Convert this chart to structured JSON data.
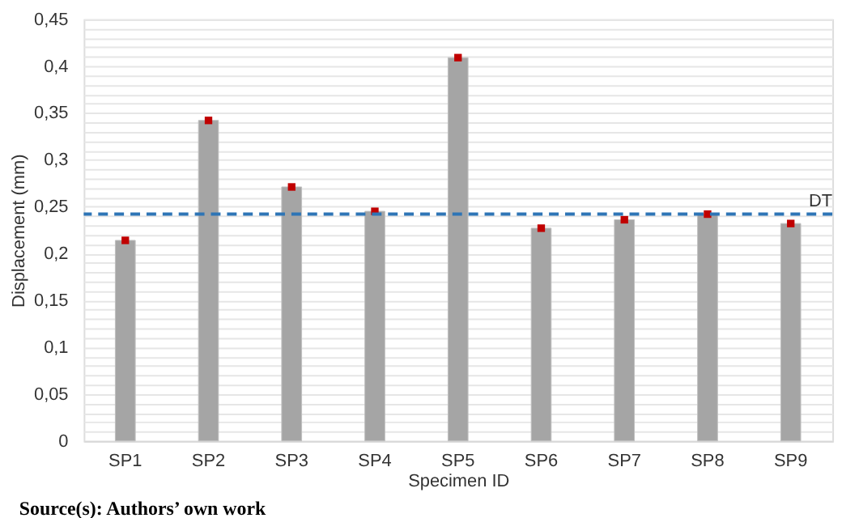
{
  "chart_data": {
    "type": "bar",
    "xlabel": "Specimen ID",
    "ylabel": "Displacement (mm)",
    "categories": [
      "SP1",
      "SP2",
      "SP3",
      "SP4",
      "SP5",
      "SP6",
      "SP7",
      "SP8",
      "SP9"
    ],
    "series": [
      {
        "color": "#a5a5a5",
        "values": [
          0.214,
          0.342,
          0.271,
          0.245,
          0.409,
          0.227,
          0.236,
          0.242,
          0.232
        ]
      },
      {
        "type": "scatter",
        "color": "#c00000",
        "marker": "square",
        "values": [
          0.214,
          0.342,
          0.271,
          0.245,
          0.409,
          0.227,
          0.236,
          0.242,
          0.232
        ]
      }
    ],
    "ylim": [
      0,
      0.45
    ],
    "yticks": [
      0,
      {
        "value": 0.01,
        "label": null
      },
      {
        "value": 0.02,
        "label": null
      },
      {
        "value": 0.03,
        "label": null
      },
      {
        "value": 0.04,
        "label": null
      },
      {
        "value": 0.05,
        "label": "0,05"
      },
      {
        "value": 0.06,
        "label": null
      },
      {
        "value": 0.07,
        "label": null
      },
      {
        "value": 0.08,
        "label": null
      },
      {
        "value": 0.09,
        "label": null
      },
      {
        "value": 0.1,
        "label": "0,1"
      },
      {
        "value": 0.11,
        "label": null
      },
      {
        "value": 0.12,
        "label": null
      },
      {
        "value": 0.13,
        "label": null
      },
      {
        "value": 0.14,
        "label": null
      },
      {
        "value": 0.15,
        "label": "0,15"
      },
      {
        "value": 0.16,
        "label": null
      },
      {
        "value": 0.17,
        "label": null
      },
      {
        "value": 0.18,
        "label": null
      },
      {
        "value": 0.19,
        "label": null
      },
      {
        "value": 0.2,
        "label": "0,2"
      },
      {
        "value": 0.21,
        "label": null
      },
      {
        "value": 0.22,
        "label": null
      },
      {
        "value": 0.23,
        "label": null
      },
      {
        "value": 0.24,
        "label": null
      },
      {
        "value": 0.25,
        "label": "0,25"
      },
      {
        "value": 0.26,
        "label": null
      },
      {
        "value": 0.27,
        "label": null
      },
      {
        "value": 0.28,
        "label": null
      },
      {
        "value": 0.29,
        "label": null
      },
      {
        "value": 0.3,
        "label": "0,3"
      },
      {
        "value": 0.31,
        "label": null
      },
      {
        "value": 0.32,
        "label": null
      },
      {
        "value": 0.33,
        "label": null
      },
      {
        "value": 0.34,
        "label": null
      },
      {
        "value": 0.35,
        "label": "0,35"
      },
      {
        "value": 0.36,
        "label": null
      },
      {
        "value": 0.37,
        "label": null
      },
      {
        "value": 0.38,
        "label": null
      },
      {
        "value": 0.39,
        "label": null
      },
      {
        "value": 0.4,
        "label": "0,4"
      },
      {
        "value": 0.41,
        "label": null
      },
      {
        "value": 0.42,
        "label": null
      },
      {
        "value": 0.43,
        "label": null
      },
      {
        "value": 0.44,
        "label": null
      },
      {
        "value": 0.45,
        "label": "0,45"
      }
    ],
    "grid": "y",
    "ref_lines": [
      {
        "axis": "y",
        "value": 0.242,
        "label": "DT",
        "color": "#2e75b6",
        "line_style": "dashed"
      }
    ],
    "annotations": [
      "Source(s): Authors’ own work"
    ]
  }
}
